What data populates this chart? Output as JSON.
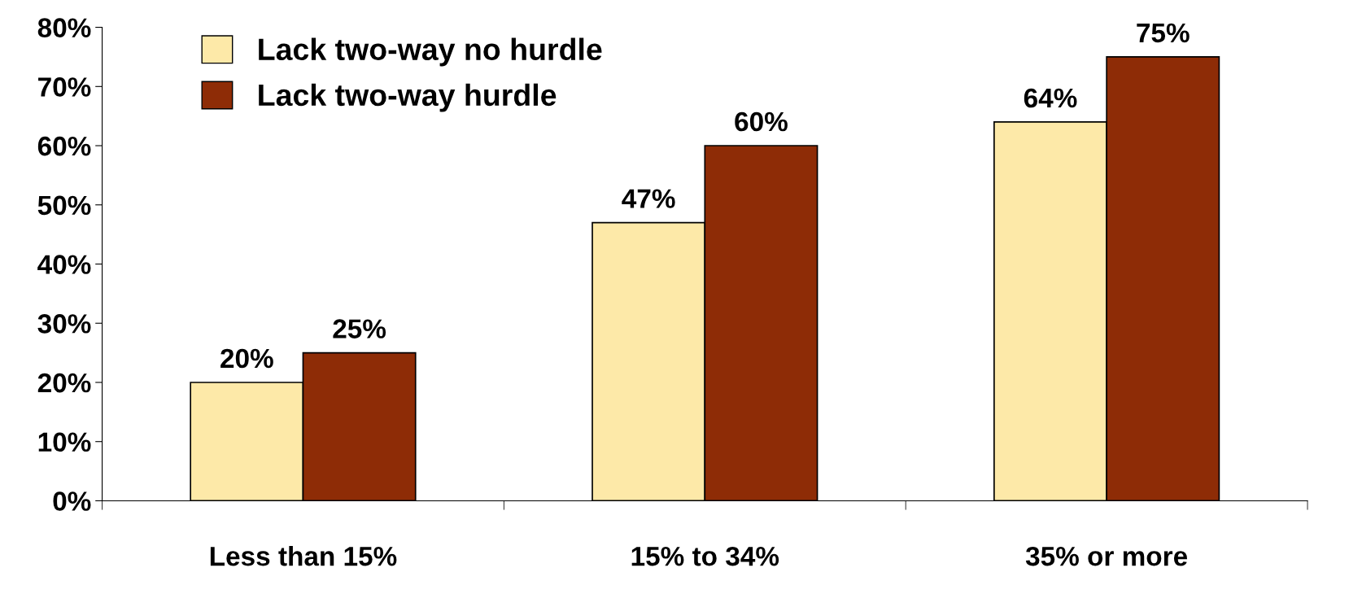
{
  "chart_data": {
    "type": "bar",
    "categories": [
      "Less than 15%",
      "15% to 34%",
      "35% or more"
    ],
    "series": [
      {
        "name": "Lack two-way no hurdle",
        "color": "#fde9a8",
        "values": [
          20,
          47,
          64
        ]
      },
      {
        "name": "Lack two-way hurdle",
        "color": "#8e2c06",
        "values": [
          25,
          60,
          75
        ]
      }
    ],
    "ylim": [
      0,
      80
    ],
    "yticks": [
      {
        "value": 0,
        "label": "0%"
      },
      {
        "value": 10,
        "label": "10%"
      },
      {
        "value": 20,
        "label": "20%"
      },
      {
        "value": 30,
        "label": "30%"
      },
      {
        "value": 40,
        "label": "40%"
      },
      {
        "value": 50,
        "label": "50%"
      },
      {
        "value": 60,
        "label": "60%"
      },
      {
        "value": 70,
        "label": "70%"
      },
      {
        "value": 80,
        "label": "80%"
      }
    ],
    "value_labels": [
      [
        "20%",
        "47%",
        "64%"
      ],
      [
        "25%",
        "60%",
        "75%"
      ]
    ],
    "grid": false,
    "legend": "top left"
  }
}
